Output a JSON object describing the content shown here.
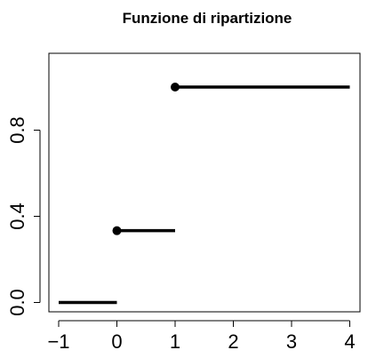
{
  "chart_data": {
    "type": "step",
    "title": "Funzione di ripartizione",
    "xlabel": "",
    "ylabel": "",
    "xlim": [
      -1,
      4
    ],
    "ylim": [
      0,
      1
    ],
    "grid": false,
    "legend": "none",
    "x_ticks": [
      -1,
      0,
      1,
      2,
      3,
      4
    ],
    "x_tick_labels": [
      "−1",
      "0",
      "1",
      "2",
      "3",
      "4"
    ],
    "y_ticks": [
      0.0,
      0.4,
      0.8
    ],
    "y_tick_labels": [
      "0.0",
      "0.4",
      "0.8"
    ],
    "segments": [
      {
        "x_start": -1,
        "x_end": 0,
        "y": 0.0,
        "closed_left": false
      },
      {
        "x_start": 0,
        "x_end": 1,
        "y": 0.3333,
        "closed_left": true
      },
      {
        "x_start": 1,
        "x_end": 4,
        "y": 1.0,
        "closed_left": true
      }
    ],
    "colors": {
      "line": "#000000",
      "axis": "#000000",
      "background": "#ffffff"
    }
  }
}
